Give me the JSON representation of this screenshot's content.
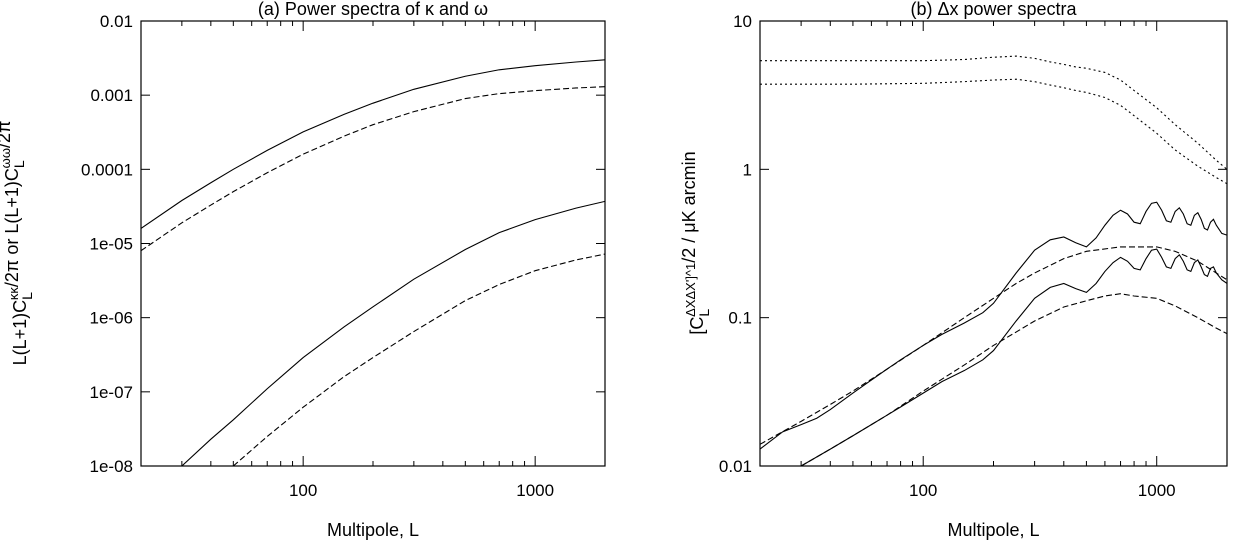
{
  "chart_data": [
    {
      "type": "line",
      "title": "(a) Power spectra of κ and ω",
      "xlabel": "Multipole, L",
      "ylabel": "L(L+1)C_L^κκ/2π or L(L+1)C_L^ωω/2π",
      "xscale": "log",
      "yscale": "log",
      "xlim": [
        20,
        2000
      ],
      "ylim": [
        1e-08,
        0.01
      ],
      "grid": false,
      "x_ticks": [
        100,
        1000
      ],
      "x_tick_labels": [
        "100",
        "1000"
      ],
      "y_ticks": [
        1e-08,
        1e-07,
        1e-06,
        1e-05,
        0.0001,
        0.001,
        0.01
      ],
      "y_tick_labels": [
        "1e-08",
        "1e-07",
        "1e-06",
        "1e-05",
        "0.0001",
        "0.001",
        "0.01"
      ],
      "series": [
        {
          "style": "solid",
          "x": [
            20,
            30,
            40,
            50,
            70,
            100,
            150,
            200,
            300,
            500,
            700,
            1000,
            1500,
            2000
          ],
          "y": [
            1.6e-05,
            3.8e-05,
            6.6e-05,
            0.0001,
            0.00018,
            0.00032,
            0.00055,
            0.00078,
            0.0012,
            0.0018,
            0.0022,
            0.0025,
            0.0028,
            0.003
          ]
        },
        {
          "style": "dashed",
          "x": [
            20,
            30,
            40,
            50,
            70,
            100,
            150,
            200,
            300,
            500,
            700,
            1000,
            1500,
            2000
          ],
          "y": [
            8e-06,
            1.9e-05,
            3.3e-05,
            5e-05,
            9e-05,
            0.00016,
            0.00028,
            0.0004,
            0.0006,
            0.0009,
            0.00105,
            0.00115,
            0.00125,
            0.0013
          ]
        },
        {
          "style": "solid",
          "x": [
            30,
            40,
            50,
            70,
            100,
            150,
            200,
            300,
            500,
            700,
            1000,
            1500,
            2000
          ],
          "y": [
            1e-08,
            2.3e-08,
            4.2e-08,
            1.1e-07,
            2.9e-07,
            7.5e-07,
            1.4e-06,
            3.3e-06,
            8.3e-06,
            1.4e-05,
            2.1e-05,
            3e-05,
            3.7e-05
          ]
        },
        {
          "style": "dashed",
          "x": [
            50,
            70,
            100,
            150,
            200,
            300,
            500,
            700,
            1000,
            1500,
            2000
          ],
          "y": [
            1e-08,
            2.5e-08,
            6.2e-08,
            1.6e-07,
            2.9e-07,
            6.5e-07,
            1.7e-06,
            2.8e-06,
            4.3e-06,
            6e-06,
            7.2e-06
          ]
        }
      ]
    },
    {
      "type": "line",
      "title": "(b) Δx power spectra",
      "xlabel": "Multipole, L",
      "ylabel": "[C_L^ΔXΔX']^1/2 / μK arcmin",
      "xscale": "log",
      "yscale": "log",
      "xlim": [
        20,
        2000
      ],
      "ylim": [
        0.01,
        10
      ],
      "grid": false,
      "x_ticks": [
        100,
        1000
      ],
      "x_tick_labels": [
        "100",
        "1000"
      ],
      "y_ticks": [
        0.01,
        0.1,
        1,
        10
      ],
      "y_tick_labels": [
        "0.01",
        "0.1",
        "1",
        "10"
      ],
      "series": [
        {
          "style": "dotted",
          "x": [
            20,
            50,
            100,
            150,
            200,
            250,
            300,
            350,
            400,
            450,
            500,
            600,
            700,
            800,
            1000,
            1200,
            1500,
            1800,
            2000
          ],
          "y": [
            5.4,
            5.4,
            5.4,
            5.5,
            5.7,
            5.8,
            5.6,
            5.3,
            5.1,
            4.9,
            4.8,
            4.5,
            4.0,
            3.4,
            2.6,
            2.0,
            1.5,
            1.15,
            1.0
          ]
        },
        {
          "style": "dotted",
          "x": [
            20,
            50,
            100,
            150,
            200,
            250,
            300,
            350,
            400,
            450,
            500,
            600,
            700,
            800,
            1000,
            1200,
            1500,
            1800,
            2000
          ],
          "y": [
            3.75,
            3.75,
            3.8,
            3.9,
            4.0,
            4.05,
            3.9,
            3.7,
            3.55,
            3.4,
            3.3,
            3.05,
            2.7,
            2.3,
            1.75,
            1.35,
            1.05,
            0.88,
            0.8
          ]
        },
        {
          "style": "solid",
          "x": [
            20,
            25,
            30,
            35,
            40,
            50,
            60,
            70,
            80,
            100,
            120,
            150,
            180,
            200,
            250,
            300,
            350,
            400,
            450,
            500,
            550,
            600,
            650,
            700,
            750,
            800,
            850,
            900,
            950,
            1000,
            1050,
            1100,
            1150,
            1200,
            1250,
            1300,
            1350,
            1400,
            1450,
            1500,
            1550,
            1600,
            1650,
            1700,
            1750,
            1800,
            1900,
            2000
          ],
          "y": [
            0.013,
            0.017,
            0.019,
            0.021,
            0.024,
            0.031,
            0.038,
            0.045,
            0.052,
            0.065,
            0.077,
            0.092,
            0.108,
            0.125,
            0.2,
            0.285,
            0.335,
            0.35,
            0.32,
            0.3,
            0.345,
            0.42,
            0.49,
            0.53,
            0.5,
            0.44,
            0.43,
            0.52,
            0.59,
            0.6,
            0.53,
            0.45,
            0.44,
            0.52,
            0.55,
            0.5,
            0.43,
            0.42,
            0.49,
            0.51,
            0.46,
            0.4,
            0.39,
            0.44,
            0.46,
            0.42,
            0.37,
            0.36
          ]
        },
        {
          "style": "dashed",
          "x": [
            20,
            30,
            40,
            50,
            70,
            100,
            150,
            200,
            250,
            300,
            400,
            500,
            700,
            1000,
            1200,
            1500,
            1800,
            2000
          ],
          "y": [
            0.014,
            0.02,
            0.026,
            0.032,
            0.045,
            0.065,
            0.1,
            0.135,
            0.17,
            0.2,
            0.25,
            0.28,
            0.3,
            0.3,
            0.28,
            0.24,
            0.2,
            0.18
          ]
        },
        {
          "style": "solid",
          "x": [
            30,
            40,
            50,
            60,
            70,
            80,
            100,
            120,
            150,
            180,
            200,
            250,
            300,
            350,
            400,
            450,
            500,
            550,
            600,
            650,
            700,
            750,
            800,
            850,
            900,
            950,
            1000,
            1050,
            1100,
            1150,
            1200,
            1250,
            1300,
            1350,
            1400,
            1450,
            1500,
            1550,
            1600,
            1650,
            1700,
            1750,
            1800,
            1900,
            2000
          ],
          "y": [
            0.01,
            0.013,
            0.016,
            0.019,
            0.022,
            0.025,
            0.031,
            0.037,
            0.044,
            0.052,
            0.06,
            0.095,
            0.135,
            0.16,
            0.17,
            0.157,
            0.148,
            0.17,
            0.205,
            0.235,
            0.255,
            0.24,
            0.215,
            0.21,
            0.25,
            0.285,
            0.29,
            0.255,
            0.22,
            0.215,
            0.25,
            0.265,
            0.24,
            0.21,
            0.205,
            0.235,
            0.245,
            0.22,
            0.195,
            0.19,
            0.215,
            0.22,
            0.2,
            0.18,
            0.17
          ]
        },
        {
          "style": "dashed",
          "x": [
            30,
            40,
            50,
            70,
            100,
            150,
            200,
            250,
            300,
            400,
            500,
            600,
            700,
            800,
            1000,
            1200,
            1500,
            1800,
            2000
          ],
          "y": [
            0.01,
            0.013,
            0.016,
            0.022,
            0.032,
            0.048,
            0.065,
            0.08,
            0.095,
            0.118,
            0.13,
            0.14,
            0.145,
            0.14,
            0.135,
            0.12,
            0.1,
            0.085,
            0.078
          ]
        }
      ]
    }
  ]
}
